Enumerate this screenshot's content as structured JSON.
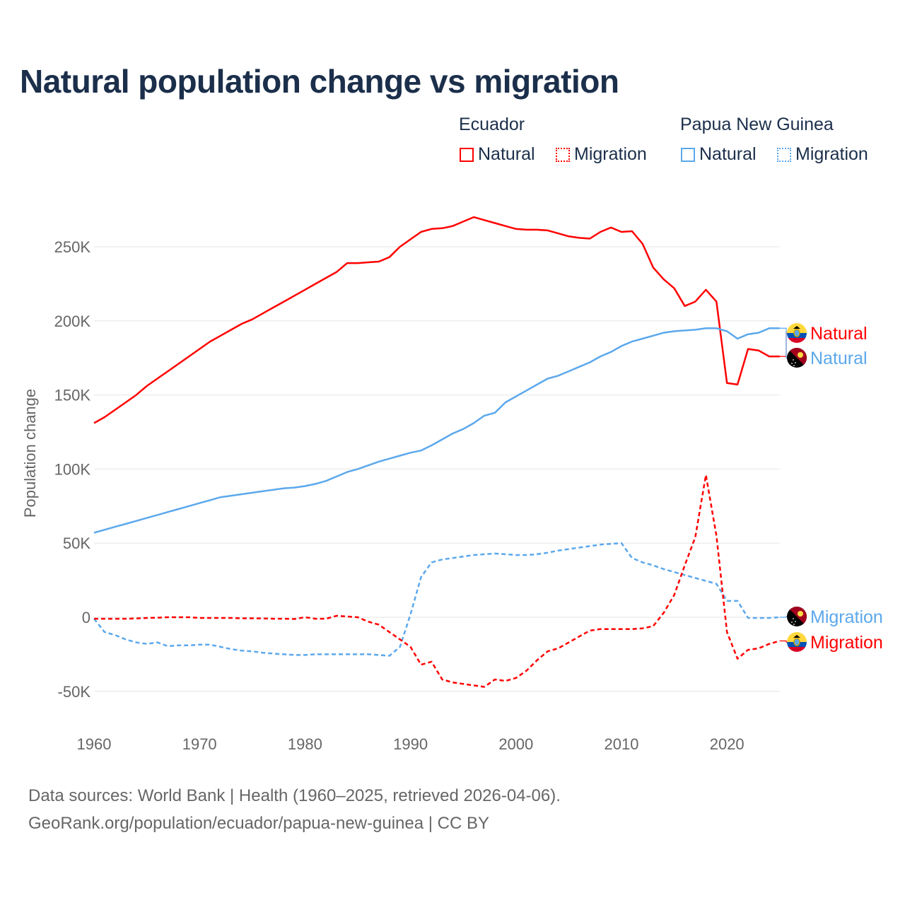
{
  "title": "Natural population change vs migration",
  "legend": {
    "groups": [
      {
        "name": "Ecuador",
        "items": [
          {
            "label": "Natural",
            "style": "solid",
            "color": "#ff0000"
          },
          {
            "label": "Migration",
            "style": "dotted",
            "color": "#ff0000"
          }
        ]
      },
      {
        "name": "Papua New Guinea",
        "items": [
          {
            "label": "Natural",
            "style": "solid",
            "color": "#5ca8ec"
          },
          {
            "label": "Migration",
            "style": "dotted",
            "color": "#5ca8ec"
          }
        ]
      }
    ]
  },
  "footer": {
    "line1": "Data sources: World Bank | Health (1960–2025, retrieved 2026-04-06).",
    "line2": "GeoRank.org/population/ecuador/papua-new-guinea | CC BY"
  },
  "chart_data": {
    "type": "line",
    "title": "Natural population change vs migration",
    "xlabel": "",
    "ylabel": "Population change",
    "xlim": [
      1960,
      2025
    ],
    "ylim": [
      -60000,
      280000
    ],
    "xticks": [
      1960,
      1970,
      1980,
      1990,
      2000,
      2010,
      2020
    ],
    "xtick_labels": [
      "1960",
      "1970",
      "1980",
      "1990",
      "2000",
      "2010",
      "2020"
    ],
    "yticks": [
      -50000,
      0,
      50000,
      100000,
      150000,
      200000,
      250000
    ],
    "ytick_labels": [
      "-50K",
      "0",
      "50K",
      "100K",
      "150K",
      "200K",
      "250K"
    ],
    "grid": true,
    "legend_position": "top-right",
    "x_start": 1960,
    "series": [
      {
        "name": "Ecuador Natural",
        "end_label": "Natural",
        "country": "Ecuador",
        "color": "#ff0000",
        "dash": false,
        "values": [
          131,
          135,
          140,
          145,
          150,
          156,
          161,
          166,
          171,
          176,
          181,
          186,
          190,
          194,
          198,
          201,
          205,
          209,
          213,
          217,
          221,
          225,
          229,
          233,
          239,
          239,
          239.5,
          240,
          243,
          250,
          255,
          260,
          262,
          262.5,
          264,
          267,
          270,
          268,
          266,
          264,
          262,
          261.5,
          261.5,
          261,
          259,
          257,
          256,
          255.5,
          260,
          263,
          260,
          260.5,
          252,
          236,
          228,
          222,
          210,
          213,
          221,
          213,
          158,
          157,
          181,
          180,
          176,
          176
        ]
      },
      {
        "name": "Papua New Guinea Natural",
        "end_label": "Natural",
        "country": "Papua New Guinea",
        "color": "#5ca8ec",
        "dash": false,
        "values": [
          57,
          59,
          61,
          63,
          65,
          67,
          69,
          71,
          73,
          75,
          77,
          79,
          81,
          82,
          83,
          84,
          85,
          86,
          87,
          87.5,
          88.5,
          90,
          92,
          95,
          98,
          100,
          102.5,
          105,
          107,
          109,
          111,
          112.5,
          116,
          120,
          124,
          127,
          131,
          136,
          138,
          145,
          149,
          153,
          157,
          161,
          163,
          166,
          169,
          172,
          176,
          179,
          183,
          186,
          188,
          190,
          192,
          193,
          193.5,
          194,
          195,
          195,
          193,
          188,
          191,
          192,
          195,
          195
        ]
      },
      {
        "name": "Papua New Guinea Migration",
        "end_label": "Migration",
        "country": "Papua New Guinea",
        "color": "#5ca8ec",
        "dash": true,
        "values": [
          -1,
          -10,
          -12,
          -15,
          -17,
          -18,
          -17,
          -19.5,
          -19,
          -19,
          -18.5,
          -18.5,
          -20,
          -21.5,
          -22.5,
          -23,
          -24,
          -24.5,
          -25,
          -25.5,
          -25.5,
          -25,
          -25,
          -25,
          -25,
          -25,
          -25,
          -25.5,
          -26,
          -20,
          2,
          27,
          37,
          39,
          40,
          41,
          42,
          42.5,
          43,
          42.5,
          42,
          42,
          42.5,
          43.5,
          45,
          46,
          47,
          48,
          49,
          49.5,
          50,
          40,
          37,
          35,
          32.5,
          30.5,
          28.5,
          26.5,
          24.5,
          22.5,
          11,
          11,
          -0.5,
          -0.5,
          -0.5,
          0
        ]
      },
      {
        "name": "Ecuador Migration",
        "end_label": "Migration",
        "country": "Ecuador",
        "color": "#ff0000",
        "dash": true,
        "values": [
          -1,
          -1,
          -1,
          -1,
          -0.8,
          -0.5,
          -0.3,
          0,
          0,
          0,
          -0.5,
          -0.5,
          -0.5,
          -0.5,
          -0.7,
          -0.7,
          -0.8,
          -1,
          -1,
          -1.2,
          0,
          -1,
          -1,
          1,
          0.5,
          0,
          -3,
          -5,
          -10,
          -15,
          -20,
          -32,
          -30,
          -42,
          -44,
          -45,
          -46,
          -47,
          -42,
          -43,
          -41,
          -36,
          -29,
          -23,
          -21,
          -17,
          -13,
          -9,
          -8,
          -8,
          -8,
          -8,
          -7.5,
          -6,
          3,
          15,
          35,
          54,
          96,
          55,
          -10,
          -28,
          -22,
          -21,
          -18,
          -16
        ]
      }
    ],
    "value_unit": "thousands"
  }
}
